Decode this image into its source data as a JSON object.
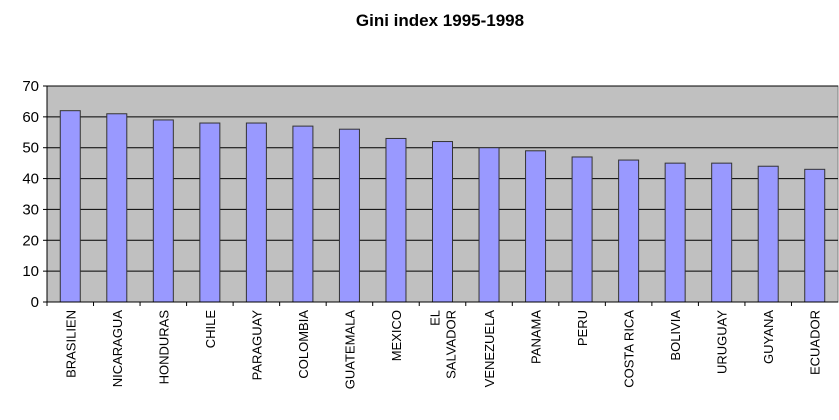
{
  "chart_data": {
    "type": "bar",
    "title": "Gini index 1995-1998",
    "categories": [
      "BRASILIEN",
      "NICARAGUA",
      "HONDURAS",
      "CHILE",
      "PARAGUAY",
      "COLOMBIA",
      "GUATEMALA",
      "MEXICO",
      "EL SALVADOR",
      "VENEZUELA",
      "PANAMA",
      "PERU",
      "COSTA RICA",
      "BOLIVIA",
      "URUGUAY",
      "GUYANA",
      "ECUADOR"
    ],
    "values": [
      62,
      61,
      59,
      58,
      58,
      57,
      56,
      53,
      52,
      50,
      49,
      47,
      46,
      45,
      45,
      44,
      43
    ],
    "color": "#9999ff",
    "ylim": [
      0,
      70
    ],
    "yticks": [
      0,
      10,
      20,
      30,
      40,
      50,
      60,
      70
    ],
    "grid": true
  }
}
